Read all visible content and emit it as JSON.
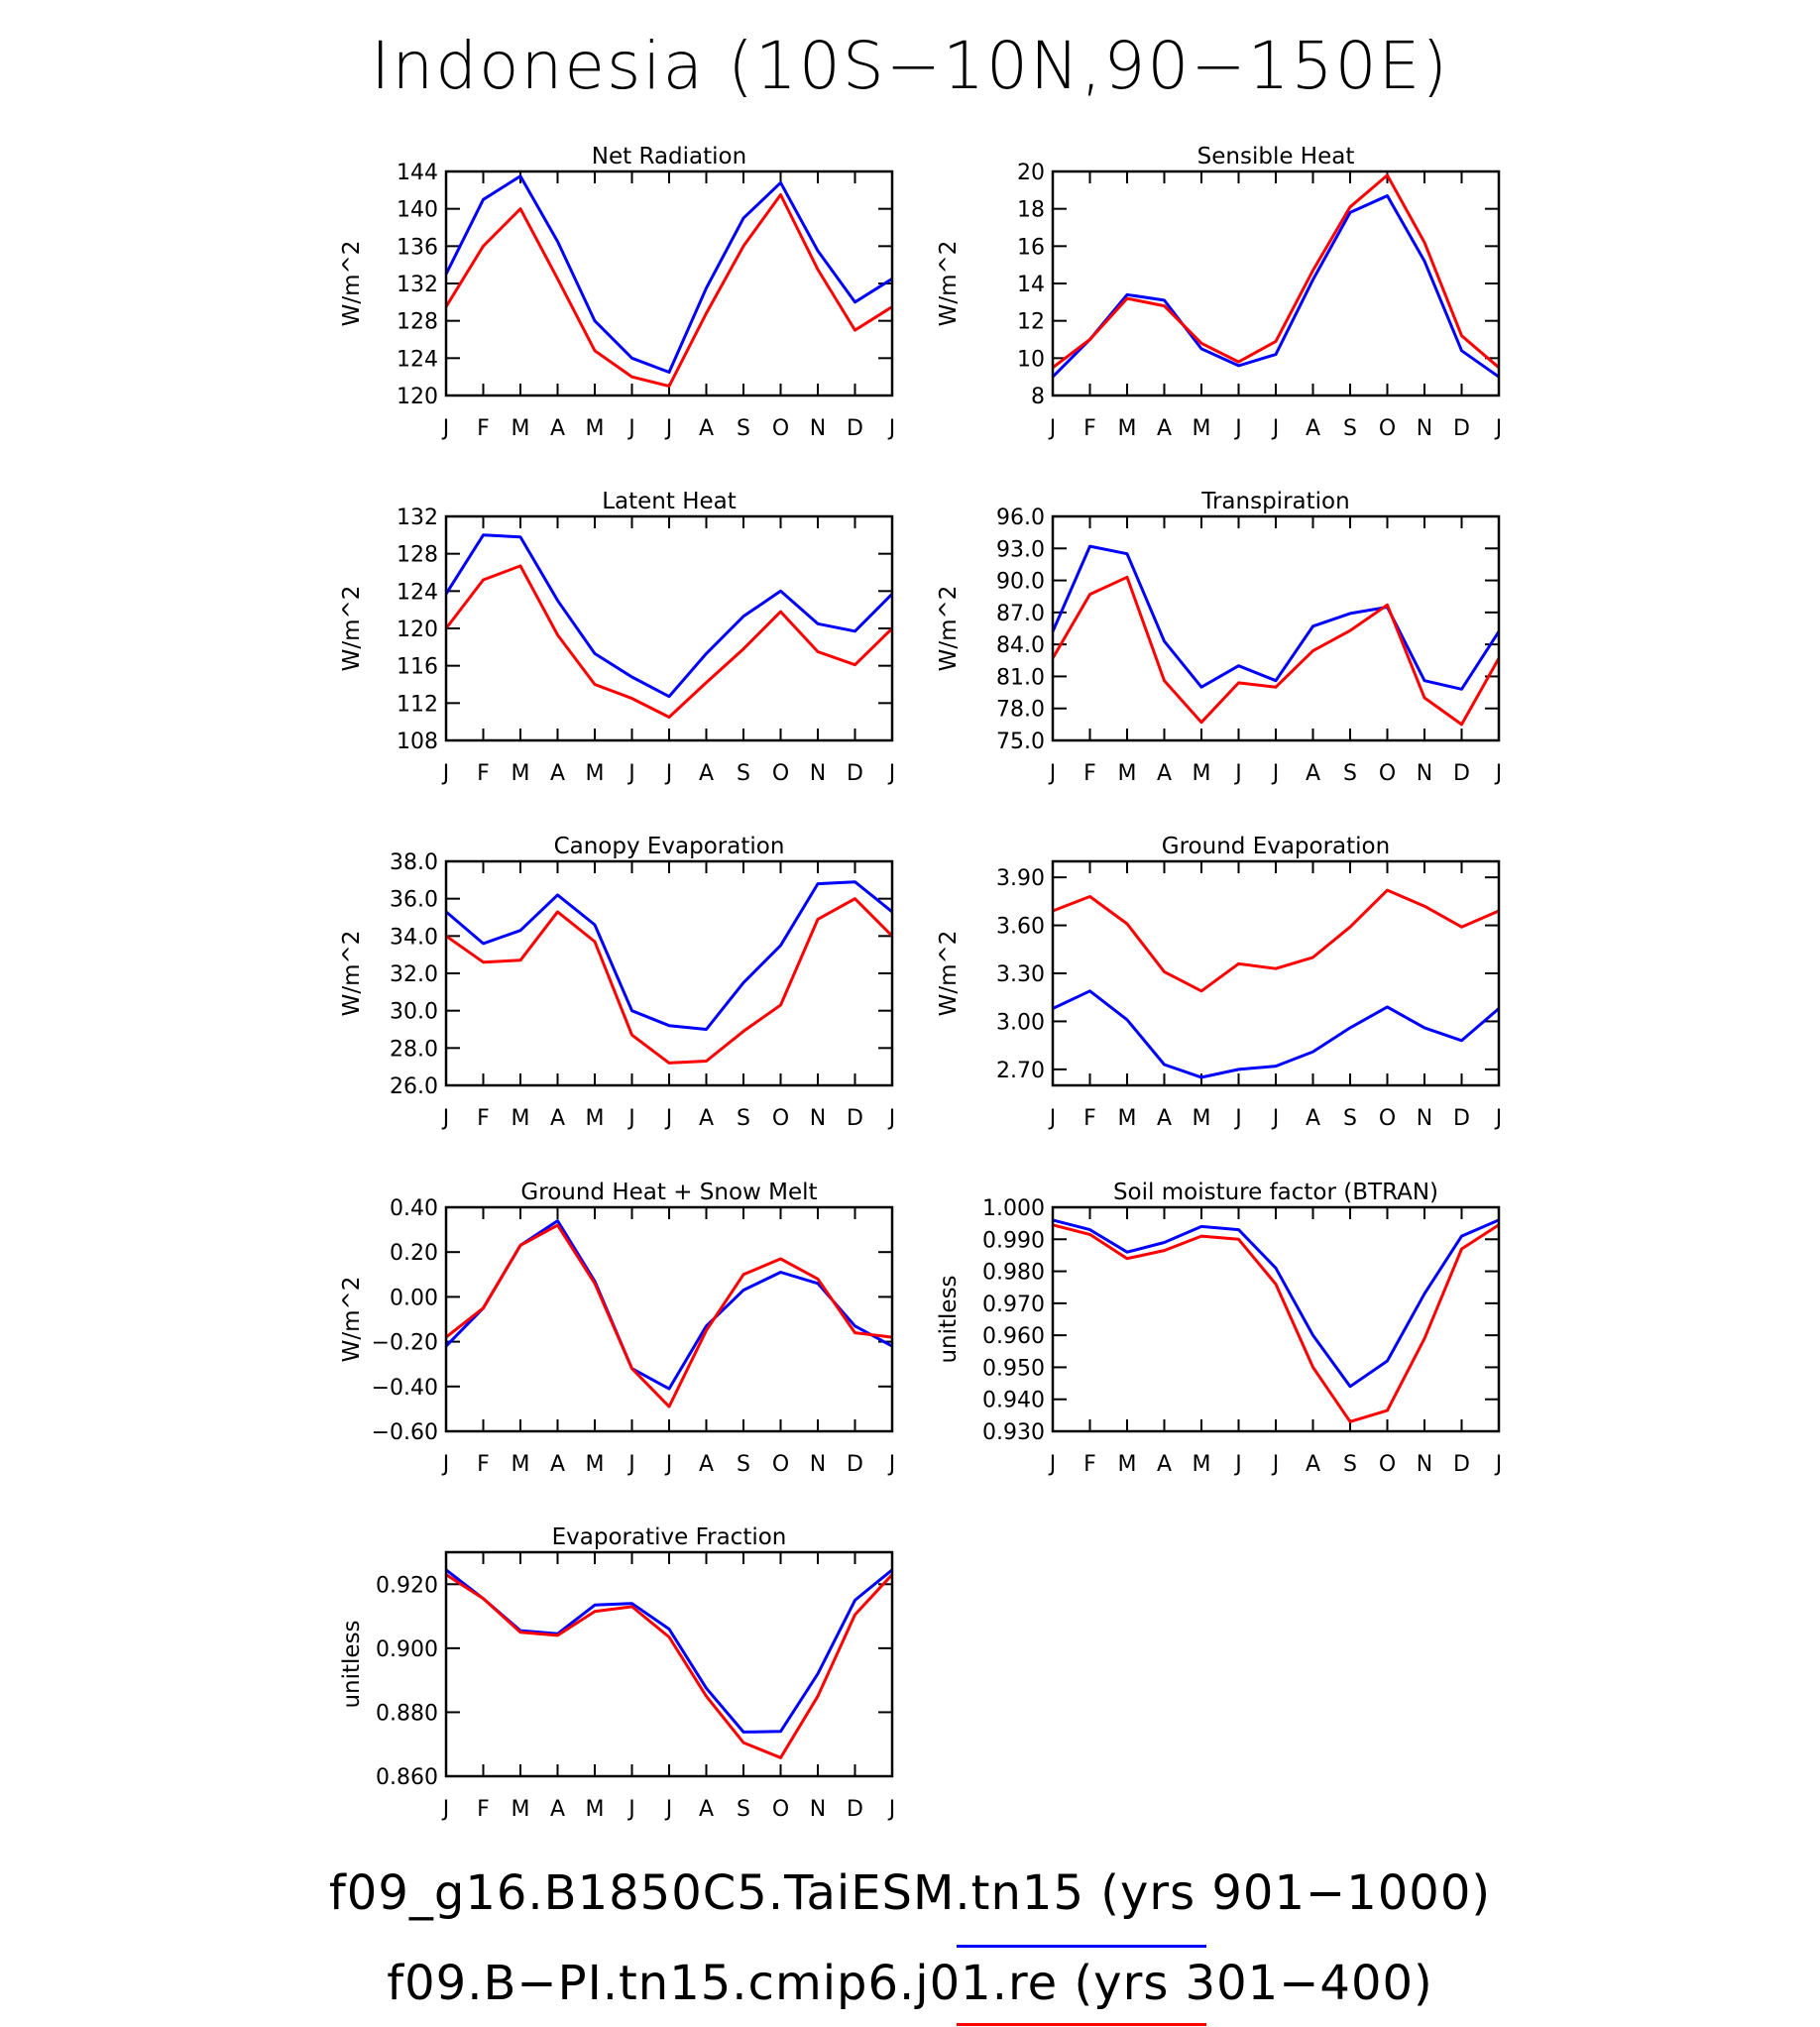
{
  "title": "Indonesia (10S−10N,90−150E)",
  "colors": {
    "blue": "#0000ff",
    "red": "#ff0000"
  },
  "legend": [
    {
      "label": "f09_g16.B1850C5.TaiESM.tn15 (yrs 901−1000)",
      "color": "#0000ff"
    },
    {
      "label": "f09.B−PI.tn15.cmip6.j01.re (yrs 301−400)",
      "color": "#ff0000"
    }
  ],
  "chart_data": [
    {
      "type": "line",
      "title": "Net Radiation",
      "ylabel": "W/m^2",
      "categories": [
        "J",
        "F",
        "M",
        "A",
        "M",
        "J",
        "J",
        "A",
        "S",
        "O",
        "N",
        "D",
        "J"
      ],
      "ylim": [
        120,
        144
      ],
      "yticks": [
        "120",
        "124",
        "128",
        "132",
        "136",
        "140",
        "144"
      ],
      "series": [
        {
          "color": "#0000ff",
          "values": [
            133.0,
            141.0,
            143.5,
            136.5,
            128.0,
            124.0,
            122.5,
            131.5,
            139.0,
            142.8,
            135.5,
            130.0,
            132.5
          ]
        },
        {
          "color": "#ff0000",
          "values": [
            129.5,
            136.0,
            140.0,
            132.5,
            124.8,
            122.0,
            121.0,
            128.8,
            136.0,
            141.5,
            133.5,
            127.0,
            129.5
          ]
        }
      ]
    },
    {
      "type": "line",
      "title": "Sensible Heat",
      "ylabel": "W/m^2",
      "categories": [
        "J",
        "F",
        "M",
        "A",
        "M",
        "J",
        "J",
        "A",
        "S",
        "O",
        "N",
        "D",
        "J"
      ],
      "ylim": [
        8,
        20
      ],
      "yticks": [
        "8",
        "10",
        "12",
        "14",
        "16",
        "18",
        "20"
      ],
      "series": [
        {
          "color": "#0000ff",
          "values": [
            9.0,
            11.0,
            13.4,
            13.1,
            10.5,
            9.6,
            10.2,
            14.2,
            17.8,
            18.7,
            15.2,
            10.4,
            9.0
          ]
        },
        {
          "color": "#ff0000",
          "values": [
            9.5,
            11.0,
            13.2,
            12.8,
            10.8,
            9.8,
            10.9,
            14.7,
            18.1,
            19.8,
            16.2,
            11.2,
            9.5
          ]
        }
      ]
    },
    {
      "type": "line",
      "title": "Latent Heat",
      "ylabel": "W/m^2",
      "categories": [
        "J",
        "F",
        "M",
        "A",
        "M",
        "J",
        "J",
        "A",
        "S",
        "O",
        "N",
        "D",
        "J"
      ],
      "ylim": [
        108,
        132
      ],
      "yticks": [
        "108",
        "112",
        "116",
        "120",
        "124",
        "128",
        "132"
      ],
      "series": [
        {
          "color": "#0000ff",
          "values": [
            123.7,
            130.0,
            129.8,
            123.0,
            117.3,
            114.8,
            112.7,
            117.3,
            121.3,
            124.0,
            120.5,
            119.7,
            123.7
          ]
        },
        {
          "color": "#ff0000",
          "values": [
            120.0,
            125.2,
            126.7,
            119.3,
            114.0,
            112.5,
            110.5,
            114.2,
            117.8,
            121.8,
            117.5,
            116.1,
            120.0
          ]
        }
      ]
    },
    {
      "type": "line",
      "title": "Transpiration",
      "ylabel": "W/m^2",
      "categories": [
        "J",
        "F",
        "M",
        "A",
        "M",
        "J",
        "J",
        "A",
        "S",
        "O",
        "N",
        "D",
        "J"
      ],
      "ylim": [
        75,
        96
      ],
      "yticks": [
        "75.0",
        "78.0",
        "81.0",
        "84.0",
        "87.0",
        "90.0",
        "93.0",
        "96.0"
      ],
      "series": [
        {
          "color": "#0000ff",
          "values": [
            85.2,
            93.2,
            92.5,
            84.3,
            80.0,
            82.0,
            80.6,
            85.7,
            86.9,
            87.5,
            80.6,
            79.8,
            85.2
          ]
        },
        {
          "color": "#ff0000",
          "values": [
            82.7,
            88.7,
            90.3,
            80.6,
            76.7,
            80.4,
            80.0,
            83.4,
            85.3,
            87.7,
            79.0,
            76.5,
            82.7
          ]
        }
      ]
    },
    {
      "type": "line",
      "title": "Canopy Evaporation",
      "ylabel": "W/m^2",
      "categories": [
        "J",
        "F",
        "M",
        "A",
        "M",
        "J",
        "J",
        "A",
        "S",
        "O",
        "N",
        "D",
        "J"
      ],
      "ylim": [
        26,
        38
      ],
      "yticks": [
        "26.0",
        "28.0",
        "30.0",
        "32.0",
        "34.0",
        "36.0",
        "38.0"
      ],
      "series": [
        {
          "color": "#0000ff",
          "values": [
            35.3,
            33.6,
            34.3,
            36.2,
            34.6,
            30.0,
            29.2,
            29.0,
            31.5,
            33.5,
            36.8,
            36.9,
            35.3
          ]
        },
        {
          "color": "#ff0000",
          "values": [
            34.0,
            32.6,
            32.7,
            35.3,
            33.7,
            28.7,
            27.2,
            27.3,
            28.9,
            30.3,
            34.9,
            36.0,
            34.0
          ]
        }
      ]
    },
    {
      "type": "line",
      "title": "Ground Evaporation",
      "ylabel": "W/m^2",
      "categories": [
        "J",
        "F",
        "M",
        "A",
        "M",
        "J",
        "J",
        "A",
        "S",
        "O",
        "N",
        "D",
        "J"
      ],
      "ylim": [
        2.6,
        4.0
      ],
      "yticks": [
        "2.70",
        "3.00",
        "3.30",
        "3.60",
        "3.90"
      ],
      "ytick_values": [
        2.7,
        3.0,
        3.3,
        3.6,
        3.9
      ],
      "series": [
        {
          "color": "#0000ff",
          "values": [
            3.08,
            3.19,
            3.01,
            2.73,
            2.65,
            2.7,
            2.72,
            2.81,
            2.96,
            3.09,
            2.96,
            2.88,
            3.08
          ]
        },
        {
          "color": "#ff0000",
          "values": [
            3.69,
            3.78,
            3.61,
            3.31,
            3.19,
            3.36,
            3.33,
            3.4,
            3.59,
            3.82,
            3.72,
            3.59,
            3.69
          ]
        }
      ]
    },
    {
      "type": "line",
      "title": "Ground Heat + Snow Melt",
      "ylabel": "W/m^2",
      "categories": [
        "J",
        "F",
        "M",
        "A",
        "M",
        "J",
        "J",
        "A",
        "S",
        "O",
        "N",
        "D",
        "J"
      ],
      "ylim": [
        -0.6,
        0.4
      ],
      "yticks": [
        "−0.60",
        "−0.40",
        "−0.20",
        "0.00",
        "0.20",
        "0.40"
      ],
      "series": [
        {
          "color": "#0000ff",
          "values": [
            -0.22,
            -0.05,
            0.23,
            0.34,
            0.07,
            -0.32,
            -0.41,
            -0.13,
            0.03,
            0.11,
            0.06,
            -0.13,
            -0.22
          ]
        },
        {
          "color": "#ff0000",
          "values": [
            -0.18,
            -0.05,
            0.23,
            0.32,
            0.06,
            -0.32,
            -0.49,
            -0.15,
            0.1,
            0.17,
            0.08,
            -0.16,
            -0.18
          ]
        }
      ]
    },
    {
      "type": "line",
      "title": "Soil moisture factor (BTRAN)",
      "ylabel": "unitless",
      "categories": [
        "J",
        "F",
        "M",
        "A",
        "M",
        "J",
        "J",
        "A",
        "S",
        "O",
        "N",
        "D",
        "J"
      ],
      "ylim": [
        0.93,
        1.0
      ],
      "yticks": [
        "0.930",
        "0.940",
        "0.950",
        "0.960",
        "0.970",
        "0.980",
        "0.990",
        "1.000"
      ],
      "series": [
        {
          "color": "#0000ff",
          "values": [
            0.996,
            0.993,
            0.986,
            0.989,
            0.994,
            0.993,
            0.981,
            0.96,
            0.944,
            0.952,
            0.973,
            0.991,
            0.996
          ]
        },
        {
          "color": "#ff0000",
          "values": [
            0.9945,
            0.9915,
            0.984,
            0.9865,
            0.991,
            0.99,
            0.976,
            0.95,
            0.933,
            0.9365,
            0.959,
            0.987,
            0.9945
          ]
        }
      ]
    },
    {
      "type": "line",
      "title": "Evaporative Fraction",
      "ylabel": "unitless",
      "categories": [
        "J",
        "F",
        "M",
        "A",
        "M",
        "J",
        "J",
        "A",
        "S",
        "O",
        "N",
        "D",
        "J"
      ],
      "ylim": [
        0.86,
        0.93
      ],
      "yticks": [
        "0.860",
        "0.880",
        "0.900",
        "0.920"
      ],
      "ytick_values": [
        0.86,
        0.88,
        0.9,
        0.92
      ],
      "series": [
        {
          "color": "#0000ff",
          "values": [
            0.9245,
            0.9155,
            0.9055,
            0.9045,
            0.9135,
            0.914,
            0.906,
            0.8875,
            0.8738,
            0.874,
            0.892,
            0.915,
            0.9245
          ]
        },
        {
          "color": "#ff0000",
          "values": [
            0.923,
            0.9155,
            0.905,
            0.904,
            0.9115,
            0.913,
            0.9035,
            0.885,
            0.8705,
            0.8658,
            0.885,
            0.9105,
            0.923
          ]
        }
      ]
    }
  ]
}
